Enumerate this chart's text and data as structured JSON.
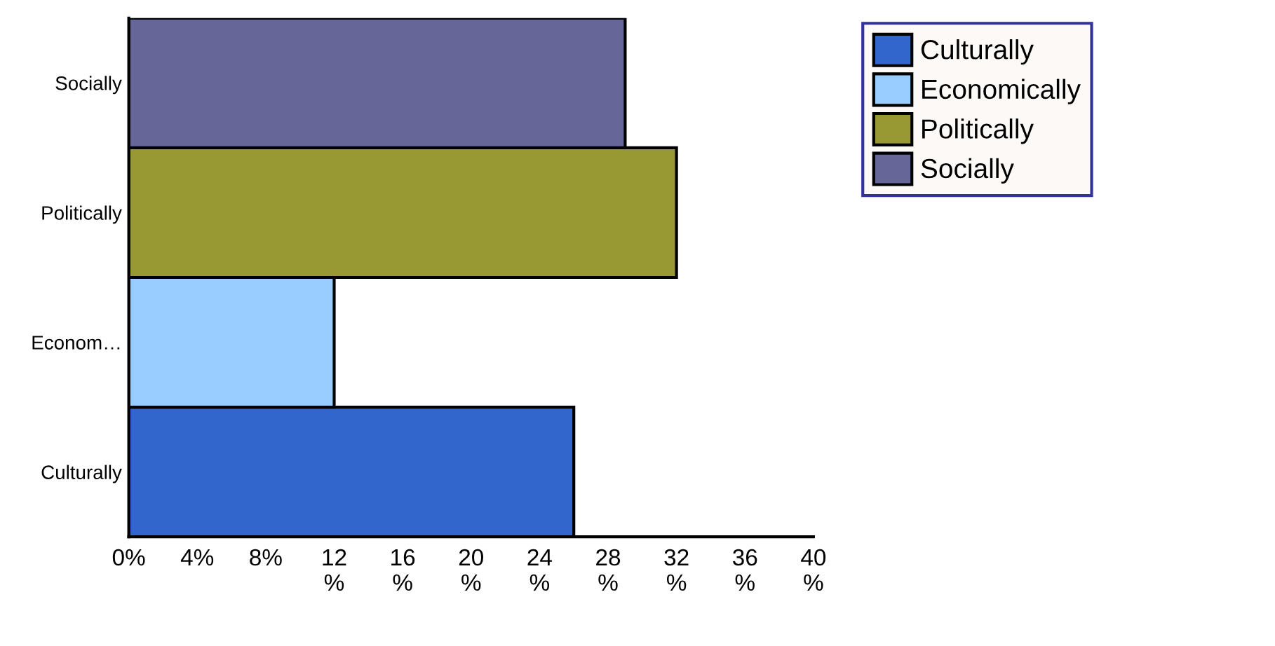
{
  "chart_data": {
    "type": "bar",
    "orientation": "horizontal",
    "categories": [
      "Socially",
      "Politically",
      "Econom…",
      "Culturally"
    ],
    "series": [
      {
        "name": "Culturally",
        "color": "#3366cc",
        "values": [
          null,
          null,
          null,
          26
        ]
      },
      {
        "name": "Economically",
        "color": "#99ccff",
        "values": [
          null,
          null,
          12,
          null
        ]
      },
      {
        "name": "Politically",
        "color": "#999933",
        "values": [
          null,
          32,
          null,
          null
        ]
      },
      {
        "name": "Socially",
        "color": "#666699",
        "values": [
          29,
          null,
          null,
          null
        ]
      }
    ],
    "xlim": [
      0,
      40
    ],
    "xticks": [
      {
        "value": 0,
        "label": "0%"
      },
      {
        "value": 4,
        "label": "4%"
      },
      {
        "value": 8,
        "label": "8%"
      },
      {
        "value": 12,
        "label": "12\n%"
      },
      {
        "value": 16,
        "label": "16\n%"
      },
      {
        "value": 20,
        "label": "20\n%"
      },
      {
        "value": 24,
        "label": "24\n%"
      },
      {
        "value": 28,
        "label": "28\n%"
      },
      {
        "value": 32,
        "label": "32\n%"
      },
      {
        "value": 36,
        "label": "36\n%"
      },
      {
        "value": 40,
        "label": "40\n%"
      }
    ],
    "grid": false,
    "legend": "right"
  }
}
